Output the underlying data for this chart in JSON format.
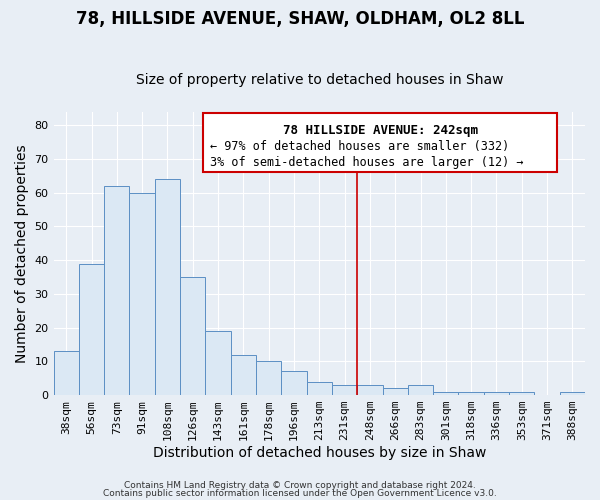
{
  "title": "78, HILLSIDE AVENUE, SHAW, OLDHAM, OL2 8LL",
  "subtitle": "Size of property relative to detached houses in Shaw",
  "xlabel": "Distribution of detached houses by size in Shaw",
  "ylabel": "Number of detached properties",
  "footer1": "Contains HM Land Registry data © Crown copyright and database right 2024.",
  "footer2": "Contains public sector information licensed under the Open Government Licence v3.0.",
  "bin_labels": [
    "38sqm",
    "56sqm",
    "73sqm",
    "91sqm",
    "108sqm",
    "126sqm",
    "143sqm",
    "161sqm",
    "178sqm",
    "196sqm",
    "213sqm",
    "231sqm",
    "248sqm",
    "266sqm",
    "283sqm",
    "301sqm",
    "318sqm",
    "336sqm",
    "353sqm",
    "371sqm",
    "388sqm"
  ],
  "bar_values": [
    13,
    39,
    62,
    60,
    64,
    35,
    19,
    12,
    10,
    7,
    4,
    3,
    3,
    2,
    3,
    1,
    1,
    1,
    1,
    0,
    1
  ],
  "bar_color": "#dbe8f4",
  "bar_edge_color": "#5b8fc4",
  "vline_x": 12.0,
  "vline_color": "#cc0000",
  "ylim": [
    0,
    84
  ],
  "yticks": [
    0,
    10,
    20,
    30,
    40,
    50,
    60,
    70,
    80
  ],
  "annotation_title": "78 HILLSIDE AVENUE: 242sqm",
  "annotation_line1": "← 97% of detached houses are smaller (332)",
  "annotation_line2": "3% of semi-detached houses are larger (12) →",
  "background_color": "#e8eef5",
  "plot_bg_color": "#e8eef5",
  "grid_color": "#ffffff",
  "title_fontsize": 12,
  "subtitle_fontsize": 10,
  "axis_label_fontsize": 10,
  "tick_fontsize": 8
}
